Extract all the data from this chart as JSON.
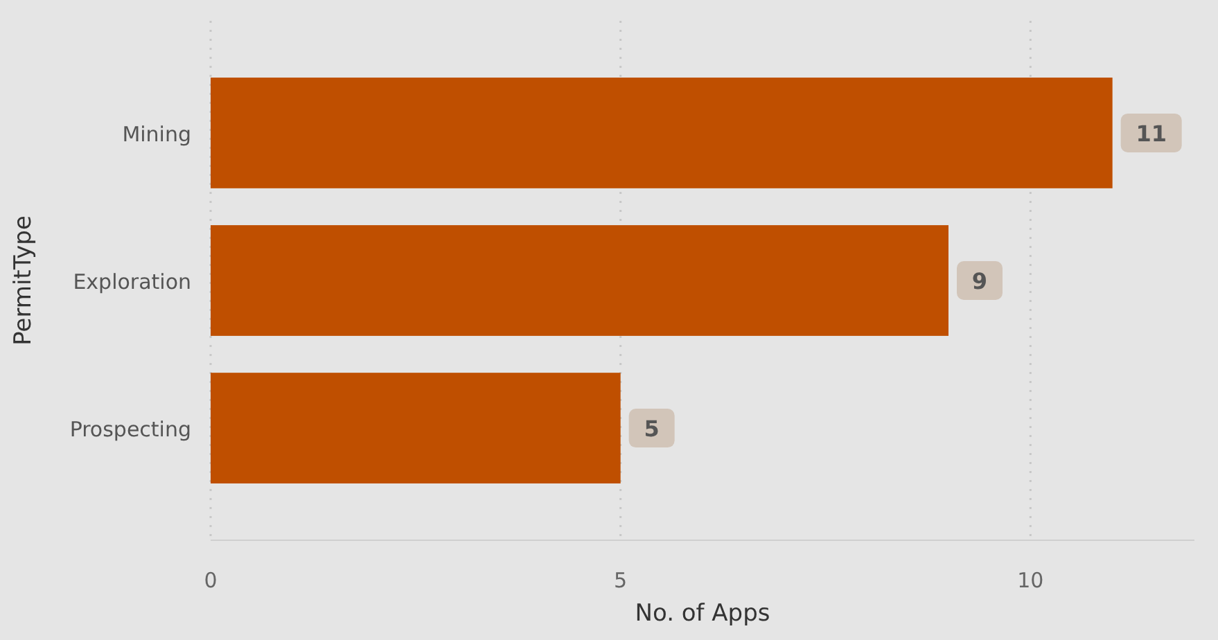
{
  "chart_data": {
    "type": "bar",
    "orientation": "horizontal",
    "xlabel": "No. of Apps",
    "ylabel": "PermitType",
    "categories": [
      "Mining",
      "Exploration",
      "Prospecting"
    ],
    "values": [
      11,
      9,
      5
    ],
    "color": "#bf4f00",
    "xlim": [
      0,
      12
    ],
    "xticks": [
      0,
      5,
      10
    ],
    "grid": "x",
    "data_labels": true
  }
}
